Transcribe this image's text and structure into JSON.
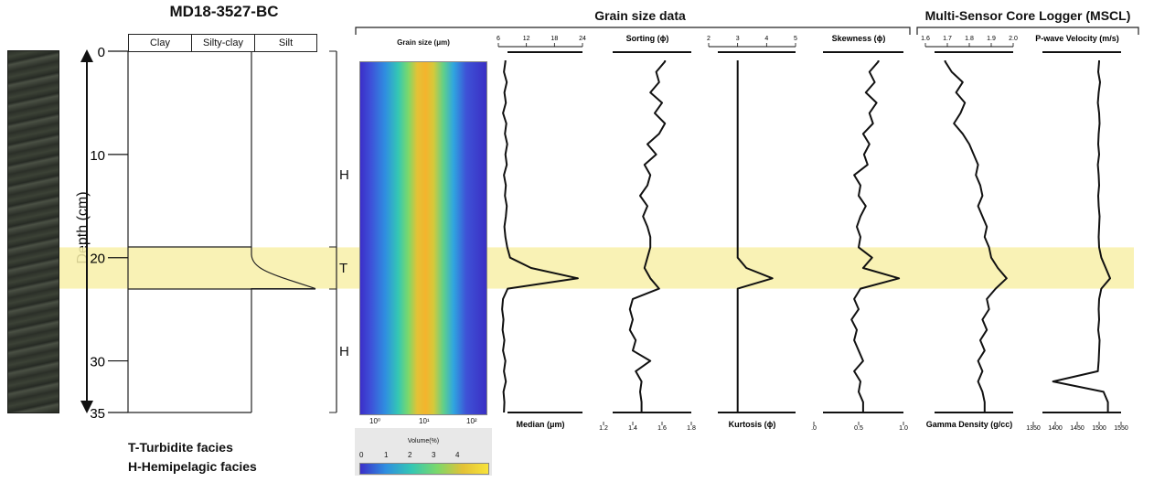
{
  "core_title": "MD18-3527-BC",
  "lithology_headers": [
    "Clay",
    "Silty-clay",
    "Silt"
  ],
  "depth_label": "Depth (cm)",
  "depth_ticks": [
    "0",
    "10",
    "20",
    "30",
    "35"
  ],
  "facies": [
    "H",
    "T",
    "H"
  ],
  "legend": {
    "turbidite": "T-Turbidite facies",
    "hemipelagic": "H-Hemipelagic facies"
  },
  "group_titles": {
    "grain": "Grain size data",
    "mscl": "Multi-Sensor Core Logger (MSCL)"
  },
  "heatmap": {
    "title": "Grain size (μm)",
    "ticks": [
      "10⁰",
      "10¹",
      "10²"
    ],
    "volume_label": "Volume(%)",
    "volume_ticks": [
      "0",
      "1",
      "2",
      "3",
      "4"
    ]
  },
  "colors": {
    "highlight": "#f8f0a8",
    "turbidite_line": "#3a3500"
  },
  "chart_data": {
    "type": "line",
    "depth_axis": {
      "label": "Depth (cm)",
      "range": [
        0,
        35
      ],
      "reversed": true
    },
    "turbidite_interval_cm": [
      19,
      23
    ],
    "depth": [
      1,
      2,
      3,
      4,
      5,
      6,
      7,
      8,
      9,
      10,
      11,
      12,
      13,
      14,
      15,
      16,
      17,
      18,
      19,
      20,
      21,
      22,
      23,
      24,
      25,
      26,
      27,
      28,
      29,
      30,
      31,
      32,
      33,
      34,
      35
    ],
    "series": [
      {
        "name": "Median (μm)",
        "top_ticks": [
          "6",
          "12",
          "18",
          "24"
        ],
        "range": [
          6,
          24
        ],
        "values": [
          7.5,
          7.2,
          7.8,
          7.3,
          7.6,
          7.0,
          7.7,
          7.4,
          7.9,
          7.5,
          7.8,
          7.2,
          7.6,
          7.4,
          7.8,
          7.6,
          7.3,
          7.5,
          7.9,
          8.5,
          13,
          23,
          8,
          7.0,
          6.8,
          7.1,
          6.9,
          7.3,
          7.0,
          7.5,
          7.2,
          7.6,
          7.1,
          7.3,
          7.2
        ]
      },
      {
        "name": "Sorting (ϕ)",
        "bottom_ticks": [
          "1.2",
          "1.4",
          "1.6",
          "1.8"
        ],
        "range": [
          1.2,
          1.8
        ],
        "values": [
          1.62,
          1.56,
          1.58,
          1.52,
          1.6,
          1.55,
          1.62,
          1.58,
          1.5,
          1.56,
          1.48,
          1.52,
          1.5,
          1.45,
          1.5,
          1.47,
          1.5,
          1.52,
          1.52,
          1.5,
          1.48,
          1.52,
          1.58,
          1.4,
          1.38,
          1.4,
          1.38,
          1.42,
          1.4,
          1.52,
          1.42,
          1.46,
          1.45,
          1.46,
          1.46
        ]
      },
      {
        "name": "Kurtosis (ϕ)",
        "top_ticks": [
          "2",
          "3",
          "4",
          "5"
        ],
        "range": [
          2,
          5
        ],
        "values": [
          3.0,
          3.0,
          3.0,
          3.0,
          3.0,
          3.0,
          3.0,
          3.0,
          3.0,
          3.0,
          3.0,
          3.0,
          3.0,
          3.0,
          3.0,
          3.0,
          3.0,
          3.0,
          3.0,
          3.0,
          3.3,
          4.2,
          3.0,
          3.0,
          3.0,
          3.0,
          3.0,
          3.0,
          3.0,
          3.0,
          3.0,
          3.0,
          3.0,
          3.0,
          3.0
        ]
      },
      {
        "name": "Skewness (ϕ)",
        "bottom_ticks": [
          ".0",
          "0.5",
          "1.0"
        ],
        "range": [
          0,
          1
        ],
        "values": [
          0.72,
          0.62,
          0.68,
          0.58,
          0.7,
          0.62,
          0.66,
          0.55,
          0.62,
          0.56,
          0.6,
          0.45,
          0.52,
          0.5,
          0.58,
          0.52,
          0.48,
          0.52,
          0.5,
          0.65,
          0.55,
          0.95,
          0.52,
          0.45,
          0.5,
          0.42,
          0.48,
          0.45,
          0.5,
          0.55,
          0.45,
          0.52,
          0.5,
          0.55,
          0.55
        ]
      },
      {
        "name": "Gamma Density (g/cc)",
        "top_ticks": [
          "1.6",
          "1.7",
          "1.8",
          "1.9",
          "2.0"
        ],
        "range": [
          1.6,
          2.0
        ],
        "values": [
          1.69,
          1.72,
          1.77,
          1.74,
          1.78,
          1.76,
          1.73,
          1.77,
          1.8,
          1.82,
          1.84,
          1.83,
          1.85,
          1.86,
          1.84,
          1.86,
          1.88,
          1.87,
          1.89,
          1.9,
          1.93,
          1.97,
          1.92,
          1.88,
          1.89,
          1.86,
          1.88,
          1.85,
          1.87,
          1.84,
          1.86,
          1.84,
          1.86,
          1.87,
          1.87
        ]
      },
      {
        "name": "P-wave Velocity (m/s)",
        "bottom_ticks": [
          "1350",
          "1400",
          "1450",
          "1500",
          "1550"
        ],
        "range": [
          1350,
          1550
        ],
        "values": [
          1500,
          1498,
          1502,
          1499,
          1497,
          1500,
          1501,
          1499,
          1498,
          1500,
          1497,
          1499,
          1500,
          1498,
          1499,
          1501,
          1500,
          1499,
          1500,
          1505,
          1515,
          1525,
          1505,
          1500,
          1499,
          1500,
          1498,
          1501,
          1500,
          1499,
          1497,
          1395,
          1510,
          1520,
          1520
        ]
      }
    ]
  }
}
